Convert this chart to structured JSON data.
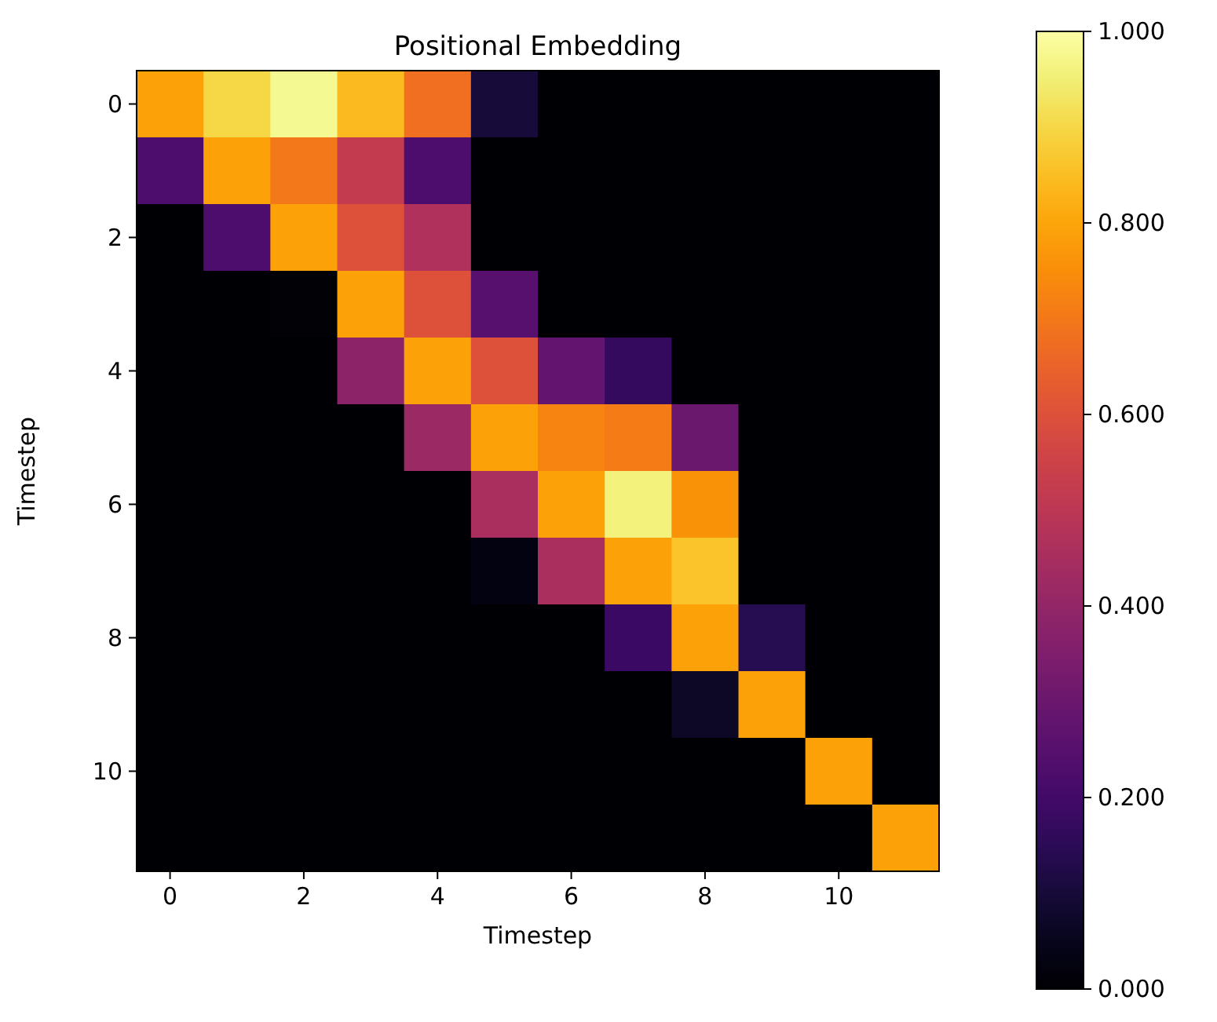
{
  "chart_data": {
    "type": "heatmap",
    "title": "Positional Embedding",
    "xlabel": "Timestep",
    "ylabel": "Timestep",
    "categories": [
      "0",
      null,
      "2",
      null,
      "4",
      null,
      "6",
      null,
      "8",
      null,
      "10",
      null
    ],
    "y_categories": [
      "0",
      null,
      "2",
      null,
      "4",
      null,
      "6",
      null,
      "8",
      null,
      "10",
      null
    ],
    "cells": [
      [
        0.79,
        0.9,
        0.98,
        0.84,
        0.68,
        0.1,
        0,
        0,
        0,
        0,
        0,
        0
      ],
      [
        0.23,
        0.79,
        0.7,
        0.52,
        0.23,
        0,
        0,
        0,
        0,
        0,
        0,
        0
      ],
      [
        0,
        0.23,
        0.79,
        0.6,
        0.47,
        0,
        0,
        0,
        0,
        0,
        0,
        0
      ],
      [
        0,
        0,
        0.01,
        0.79,
        0.6,
        0.25,
        0,
        0,
        0,
        0,
        0,
        0
      ],
      [
        0,
        0,
        0,
        0.38,
        0.79,
        0.6,
        0.28,
        0.17,
        0,
        0,
        0,
        0
      ],
      [
        0,
        0,
        0,
        0,
        0.42,
        0.79,
        0.73,
        0.71,
        0.3,
        0,
        0,
        0
      ],
      [
        0,
        0,
        0,
        0,
        0,
        0.46,
        0.79,
        0.96,
        0.76,
        0,
        0,
        0
      ],
      [
        0,
        0,
        0,
        0,
        0,
        0.03,
        0.46,
        0.79,
        0.86,
        0,
        0,
        0
      ],
      [
        0,
        0,
        0,
        0,
        0,
        0,
        0,
        0.18,
        0.79,
        0.14,
        0,
        0
      ],
      [
        0,
        0,
        0,
        0,
        0,
        0,
        0,
        0,
        0.07,
        0.79,
        0,
        0
      ],
      [
        0,
        0,
        0,
        0,
        0,
        0,
        0,
        0,
        0,
        0,
        0.79,
        0
      ],
      [
        0,
        0,
        0,
        0,
        0,
        0,
        0,
        0,
        0,
        0,
        0,
        0.79
      ]
    ],
    "clim": [
      0,
      1
    ],
    "cticks": [
      {
        "value": 0,
        "label": "0.000"
      },
      {
        "value": 0.2,
        "label": "0.200"
      },
      {
        "value": 0.4,
        "label": "0.400"
      },
      {
        "value": 0.6,
        "label": "0.600"
      },
      {
        "value": 0.8,
        "label": "0.800"
      },
      {
        "value": 1,
        "label": "1.000"
      }
    ]
  }
}
